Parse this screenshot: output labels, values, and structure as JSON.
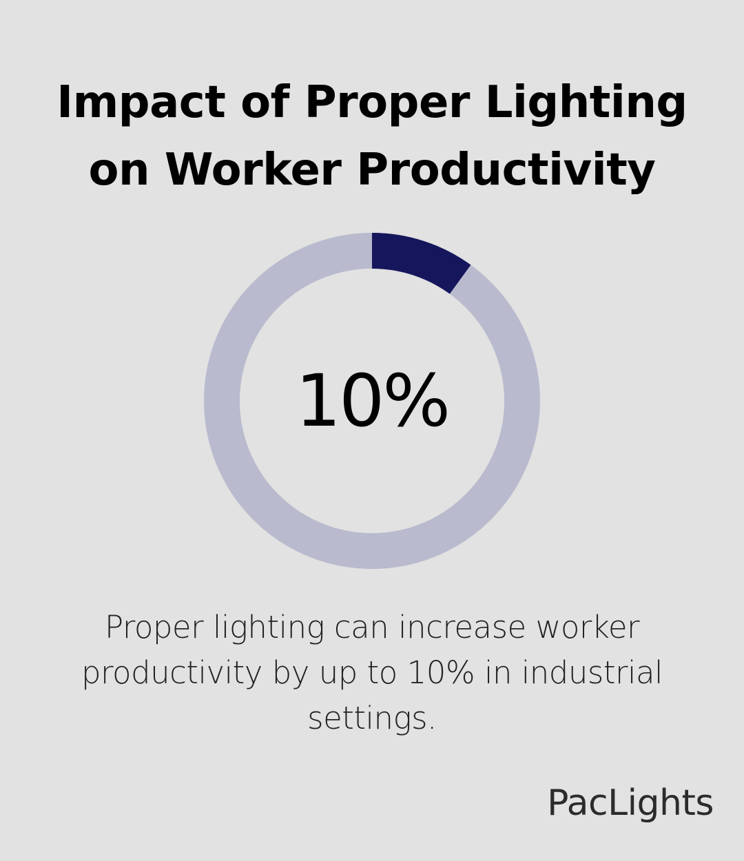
{
  "header": {
    "title_line1": "Impact of Proper Lighting",
    "title_line2": "on Worker Productivity"
  },
  "chart_data": {
    "type": "pie",
    "variant": "donut",
    "value_percent": 10,
    "center_label": "10%",
    "colors": {
      "highlight": "#16165c",
      "remainder": "#b9bace",
      "background": "#e1e2e1"
    }
  },
  "caption": {
    "text": "Proper lighting can increase worker productivity by up to 10% in industrial settings."
  },
  "brand": {
    "logo_text": "PacLights"
  }
}
